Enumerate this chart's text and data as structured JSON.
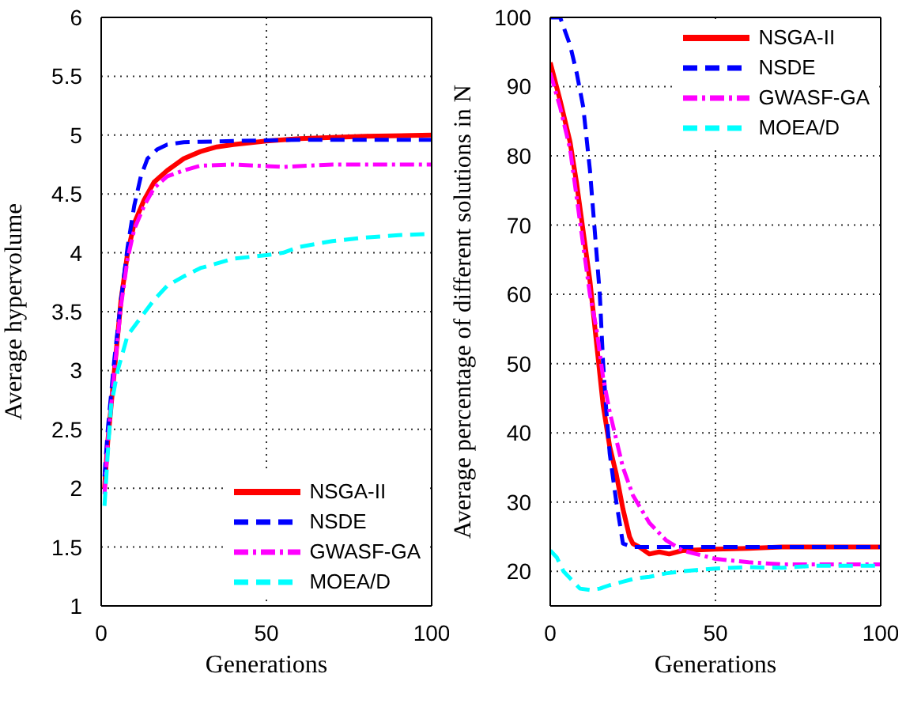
{
  "chart_data": [
    {
      "type": "line",
      "xlabel": "Generations",
      "ylabel": "Average hypervolume",
      "xlim": [
        0,
        100
      ],
      "xticks": [
        0,
        50,
        100
      ],
      "ylim": [
        1,
        6
      ],
      "yticks": [
        1,
        1.5,
        2,
        2.5,
        3,
        3.5,
        4,
        4.5,
        5,
        5.5,
        6
      ],
      "grid": true,
      "legend": "bottom right",
      "marker": "none",
      "series": [
        {
          "name": "NSGA-II",
          "color": "#ff0000",
          "line_style": "solid",
          "x": [
            1,
            2,
            4,
            6,
            8,
            10,
            13,
            16,
            20,
            25,
            30,
            35,
            40,
            50,
            60,
            70,
            80,
            100
          ],
          "values": [
            2.0,
            2.4,
            3.0,
            3.6,
            4.0,
            4.25,
            4.45,
            4.6,
            4.7,
            4.8,
            4.86,
            4.9,
            4.92,
            4.95,
            4.97,
            4.98,
            4.99,
            5.0
          ]
        },
        {
          "name": "NSDE",
          "color": "#0000ff",
          "line_style": "dashed",
          "x": [
            1,
            2,
            4,
            6,
            8,
            10,
            12,
            14,
            17,
            20,
            25,
            40,
            60,
            100
          ],
          "values": [
            2.1,
            2.5,
            3.1,
            3.6,
            4.05,
            4.4,
            4.65,
            4.8,
            4.88,
            4.92,
            4.94,
            4.95,
            4.96,
            4.96
          ]
        },
        {
          "name": "GWASF-GA",
          "color": "#ff00ff",
          "line_style": "dashdot",
          "x": [
            1,
            2,
            4,
            6,
            8,
            10,
            13,
            16,
            20,
            25,
            30,
            40,
            55,
            70,
            100
          ],
          "values": [
            1.95,
            2.4,
            3.0,
            3.55,
            3.95,
            4.2,
            4.4,
            4.55,
            4.65,
            4.7,
            4.74,
            4.75,
            4.73,
            4.75,
            4.75
          ]
        },
        {
          "name": "MOEA/D",
          "color": "#00ffff",
          "line_style": "dashed",
          "x": [
            1,
            2,
            3,
            5,
            8,
            12,
            16,
            20,
            25,
            30,
            40,
            50,
            55,
            60,
            70,
            80,
            90,
            100
          ],
          "values": [
            1.85,
            2.3,
            2.7,
            3.0,
            3.3,
            3.45,
            3.6,
            3.72,
            3.8,
            3.87,
            3.95,
            3.98,
            4.0,
            4.05,
            4.1,
            4.13,
            4.15,
            4.16
          ]
        }
      ]
    },
    {
      "type": "line",
      "xlabel": "Generations",
      "ylabel": "Average percentage of different solutions in N",
      "xlim": [
        0,
        100
      ],
      "xticks": [
        0,
        50,
        100
      ],
      "ylim": [
        15,
        100
      ],
      "yticks": [
        20,
        30,
        40,
        50,
        60,
        70,
        80,
        90,
        100
      ],
      "grid": true,
      "legend": "top right",
      "marker": "none",
      "series": [
        {
          "name": "NSGA-II",
          "color": "#ff0000",
          "line_style": "solid",
          "x": [
            0,
            3,
            6,
            8,
            10,
            12,
            14,
            16,
            18,
            20,
            22,
            24,
            25,
            27,
            30,
            33,
            36,
            40,
            50,
            60,
            70,
            100
          ],
          "values": [
            93.5,
            88,
            82,
            76,
            69,
            62,
            53,
            44,
            38,
            34,
            29,
            25,
            24,
            23.5,
            22.5,
            22.8,
            22.5,
            23,
            23.2,
            23.3,
            23.5,
            23.5
          ]
        },
        {
          "name": "NSDE",
          "color": "#0000ff",
          "line_style": "dashed",
          "x": [
            0,
            3,
            6,
            8,
            10,
            12,
            13,
            15,
            16,
            17,
            18,
            20,
            22,
            25,
            30,
            50,
            100
          ],
          "values": [
            100,
            100,
            96,
            92,
            87,
            78,
            72,
            60,
            50,
            43,
            37,
            30,
            24,
            23.5,
            23.5,
            23.5,
            23.5
          ]
        },
        {
          "name": "GWASF-GA",
          "color": "#ff00ff",
          "line_style": "dashdot",
          "x": [
            0,
            3,
            6,
            8,
            10,
            12,
            14,
            16,
            18,
            20,
            22,
            25,
            30,
            35,
            40,
            50,
            60,
            70,
            100
          ],
          "values": [
            92,
            87,
            81,
            74,
            67,
            60,
            55,
            48,
            43,
            39,
            35,
            31,
            27,
            24.5,
            23,
            21.8,
            21.3,
            21,
            21
          ]
        },
        {
          "name": "MOEA/D",
          "color": "#00ffff",
          "line_style": "dashed",
          "x": [
            0,
            2,
            4,
            6,
            9,
            12,
            15,
            18,
            22,
            26,
            30,
            35,
            40,
            45,
            50,
            60,
            70,
            80,
            90,
            100
          ],
          "values": [
            23,
            22,
            20,
            19,
            17.5,
            17.3,
            17.5,
            18,
            18.5,
            19,
            19.2,
            19.7,
            20,
            20.2,
            20.4,
            20.6,
            20.5,
            20.8,
            20.8,
            20.8
          ]
        }
      ]
    }
  ]
}
